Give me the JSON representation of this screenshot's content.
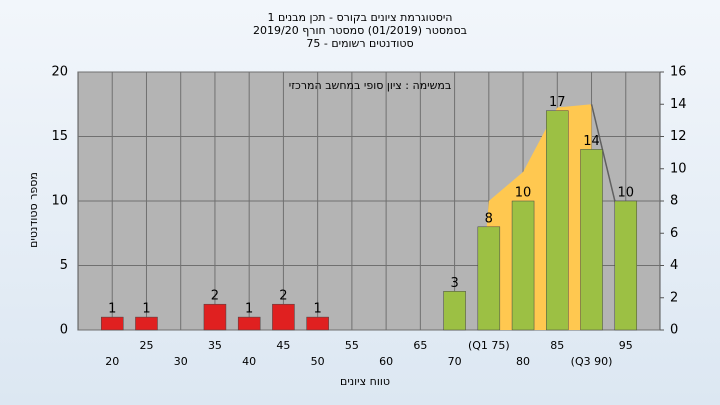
{
  "chart_data": {
    "type": "bar",
    "title": [
      "היסטוגרמת ציונים בקורס - תכן מבנים 1",
      "בסמסטר  (01/2019)  סמסטר חורף 2019/20",
      "סטודנטים רשומים - 75"
    ],
    "subtitle": "במשימה : ציון סופי במחשב המרכזי",
    "xlabel": "טווח ציונים",
    "ylabel": "מספר סטודנטים",
    "x": [
      20,
      25,
      30,
      35,
      40,
      45,
      50,
      55,
      60,
      65,
      70,
      75,
      80,
      85,
      90,
      95
    ],
    "values": [
      1,
      1,
      0,
      2,
      1,
      2,
      1,
      0,
      0,
      0,
      3,
      8,
      10,
      17,
      14,
      10
    ],
    "colors": [
      "#e02020",
      "#e02020",
      "#e02020",
      "#e02020",
      "#e02020",
      "#e02020",
      "#e02020",
      "#e02020",
      "#e02020",
      "#e02020",
      "#9cc044",
      "#9cc044",
      "#9cc044",
      "#9cc044",
      "#9cc044",
      "#9cc044"
    ],
    "xlim": [
      15,
      100
    ],
    "xticks": [
      20,
      25,
      30,
      35,
      40,
      45,
      50,
      55,
      60,
      65,
      70,
      {
        "value": 75,
        "label": "(Q1 75)"
      },
      80,
      85,
      {
        "value": 90,
        "label": "(Q3 90)"
      },
      95
    ],
    "ylim": [
      0,
      20
    ],
    "yticks": [
      0,
      5,
      10,
      15,
      20
    ],
    "y2lim": [
      0,
      16
    ],
    "y2ticks": [
      0,
      2,
      4,
      6,
      8,
      10,
      12,
      14,
      16
    ],
    "area": {
      "x": [
        73.5,
        75,
        80,
        85,
        90
      ],
      "values": [
        0,
        8,
        9.8,
        13.8,
        14
      ],
      "color": "#ffc850",
      "axis": "y2"
    },
    "line": {
      "x": [
        90,
        95
      ],
      "values": [
        14,
        5.2
      ],
      "color": "#606060",
      "axis": "y2"
    },
    "grid": true
  }
}
